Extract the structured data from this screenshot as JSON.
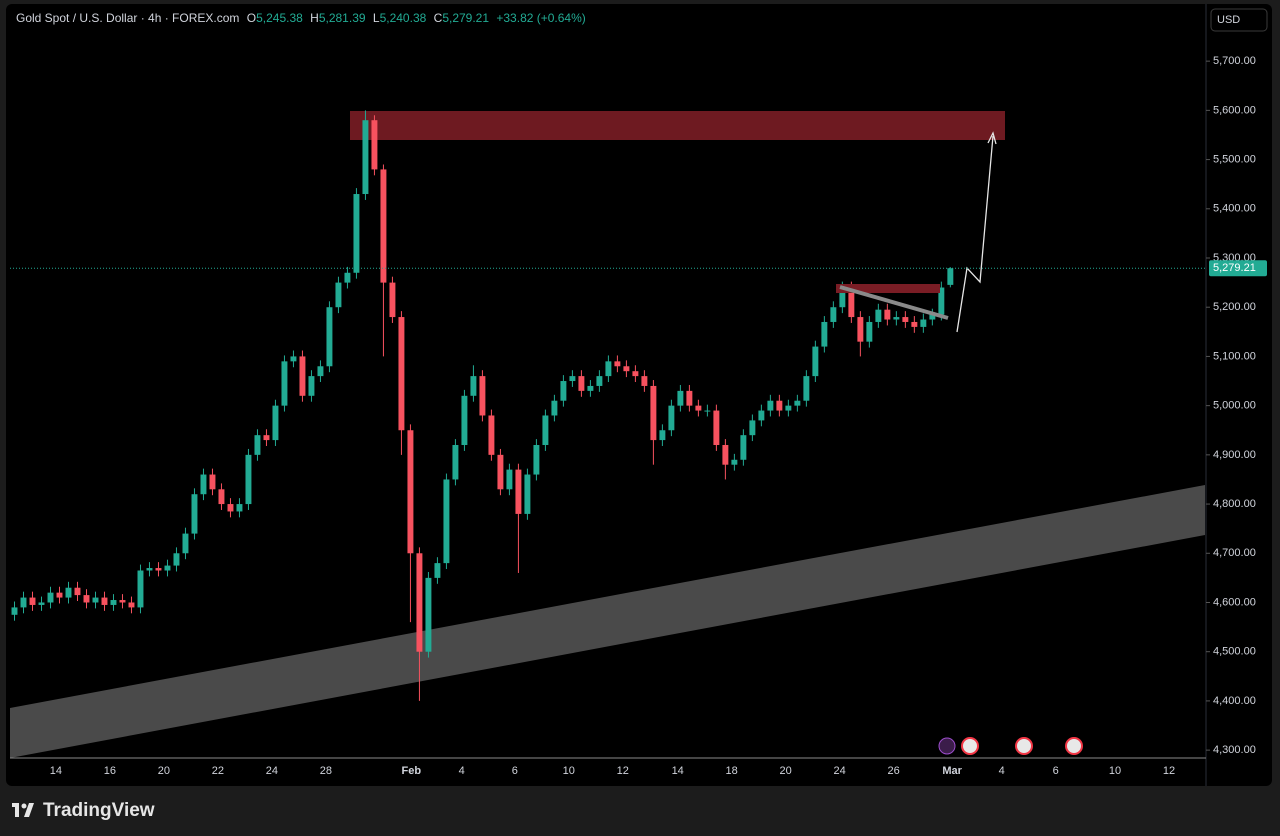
{
  "chart_data": {
    "type": "candlestick",
    "title": "Gold Spot / U.S. Dollar · 4h · FOREX.com",
    "header": {
      "o_label": "O",
      "open": "5,245.38",
      "h_label": "H",
      "high": "5,281.39",
      "l_label": "L",
      "low": "5,240.38",
      "c_label": "C",
      "close": "5,279.21",
      "change": "+33.82 (+0.64%)"
    },
    "currency": "USD",
    "brand": "TradingView",
    "last_price_label": "5,279.21",
    "up_color": "#22ab94",
    "down_color": "#f7525f",
    "open": [
      4575,
      4590,
      4610,
      4595,
      4600,
      4620,
      4610,
      4630,
      4615,
      4600,
      4610,
      4595,
      4605,
      4600,
      4590,
      4665,
      4670,
      4665,
      4675,
      4700,
      4740,
      4820,
      4860,
      4830,
      4800,
      4785,
      4800,
      4900,
      4940,
      4930,
      5000,
      5090,
      5100,
      5020,
      5060,
      5080,
      5200,
      5250,
      5270,
      5430,
      5580,
      5480,
      5250,
      5180,
      4950,
      4700,
      4500,
      4650,
      4680,
      4850,
      4920,
      5020,
      5060,
      4980,
      4900,
      4830,
      4870,
      4780,
      4860,
      4920,
      4980,
      5010,
      5050,
      5060,
      5030,
      5040,
      5060,
      5090,
      5080,
      5070,
      5060,
      5040,
      4930,
      4950,
      5000,
      5030,
      5000,
      4990,
      4990,
      4920,
      4880,
      4890,
      4940,
      4970,
      4990,
      5010,
      4990,
      5000,
      5010,
      5060,
      5120,
      5170,
      5200,
      5240,
      5180,
      5130,
      5170,
      5195,
      5175,
      5180,
      5170,
      5160,
      5175,
      5185,
      5245.38
    ],
    "high": [
      4602,
      4622,
      4622,
      4612,
      4632,
      4632,
      4642,
      4642,
      4627,
      4622,
      4622,
      4617,
      4617,
      4612,
      4677,
      4682,
      4682,
      4687,
      4712,
      4752,
      4832,
      4872,
      4872,
      4842,
      4812,
      4812,
      4912,
      4952,
      4952,
      5012,
      5102,
      5112,
      5112,
      5072,
      5092,
      5212,
      5262,
      5282,
      5442,
      5600,
      5590,
      5490,
      5262,
      5192,
      4962,
      4712,
      4662,
      4692,
      4862,
      4932,
      5032,
      5082,
      5072,
      4992,
      4912,
      4882,
      4882,
      4872,
      4932,
      4992,
      5022,
      5062,
      5072,
      5072,
      5052,
      5072,
      5102,
      5102,
      5092,
      5082,
      5072,
      5052,
      4962,
      5012,
      5042,
      5042,
      5012,
      5002,
      5002,
      4932,
      4902,
      4952,
      4982,
      5002,
      5022,
      5022,
      5012,
      5022,
      5072,
      5132,
      5182,
      5212,
      5252,
      5252,
      5192,
      5182,
      5207,
      5207,
      5192,
      5192,
      5182,
      5187,
      5197,
      5252,
      5281.39
    ],
    "low": [
      4563,
      4578,
      4583,
      4583,
      4588,
      4598,
      4598,
      4603,
      4588,
      4588,
      4583,
      4583,
      4588,
      4578,
      4578,
      4653,
      4653,
      4653,
      4663,
      4688,
      4728,
      4808,
      4818,
      4788,
      4773,
      4773,
      4788,
      4888,
      4918,
      4918,
      4988,
      5078,
      5008,
      5008,
      5048,
      5068,
      5188,
      5238,
      5258,
      5418,
      5468,
      5100,
      5168,
      4900,
      4560,
      4400,
      4488,
      4638,
      4668,
      4838,
      4908,
      5008,
      4968,
      4888,
      4818,
      4818,
      4660,
      4768,
      4848,
      4908,
      4968,
      4998,
      5038,
      5018,
      5018,
      5028,
      5048,
      5068,
      5058,
      5048,
      5028,
      4880,
      4918,
      4938,
      4988,
      4988,
      4978,
      4978,
      4908,
      4850,
      4868,
      4878,
      4928,
      4958,
      4978,
      4978,
      4978,
      4988,
      4998,
      5048,
      5108,
      5158,
      5188,
      5168,
      5100,
      5118,
      5158,
      5163,
      5163,
      5158,
      5148,
      5148,
      5163,
      5173,
      5240.38
    ],
    "close": [
      4590,
      4610,
      4595,
      4600,
      4620,
      4610,
      4630,
      4615,
      4600,
      4610,
      4595,
      4605,
      4600,
      4590,
      4665,
      4670,
      4665,
      4675,
      4700,
      4740,
      4820,
      4860,
      4830,
      4800,
      4785,
      4800,
      4900,
      4940,
      4930,
      5000,
      5090,
      5100,
      5020,
      5060,
      5080,
      5200,
      5250,
      5270,
      5430,
      5580,
      5480,
      5250,
      5180,
      4950,
      4700,
      4500,
      4650,
      4680,
      4850,
      4920,
      5020,
      5060,
      4980,
      4900,
      4830,
      4870,
      4780,
      4860,
      4920,
      4980,
      5010,
      5050,
      5060,
      5030,
      5040,
      5060,
      5090,
      5080,
      5070,
      5060,
      5040,
      4930,
      4950,
      5000,
      5030,
      5000,
      4990,
      4990,
      4920,
      4880,
      4890,
      4940,
      4970,
      4990,
      5010,
      4990,
      5000,
      5010,
      5060,
      5120,
      5170,
      5200,
      5240,
      5180,
      5130,
      5170,
      5195,
      5175,
      5180,
      5170,
      5160,
      5175,
      5185,
      5240,
      5279.21
    ],
    "xlim": [
      -0.5,
      132.3
    ],
    "xticks": [
      {
        "value": 4.6,
        "label": "14"
      },
      {
        "value": 10.6,
        "label": "16"
      },
      {
        "value": 16.6,
        "label": "20"
      },
      {
        "value": 22.6,
        "label": "22"
      },
      {
        "value": 28.6,
        "label": "24"
      },
      {
        "value": 34.6,
        "label": "28"
      },
      {
        "value": 44.1,
        "label": "Feb"
      },
      {
        "value": 49.7,
        "label": "4"
      },
      {
        "value": 55.6,
        "label": "6"
      },
      {
        "value": 61.6,
        "label": "10"
      },
      {
        "value": 67.6,
        "label": "12"
      },
      {
        "value": 73.7,
        "label": "14"
      },
      {
        "value": 79.7,
        "label": "18"
      },
      {
        "value": 85.7,
        "label": "20"
      },
      {
        "value": 91.7,
        "label": "24"
      },
      {
        "value": 97.7,
        "label": "26"
      },
      {
        "value": 104.2,
        "label": "Mar"
      },
      {
        "value": 109.7,
        "label": "4"
      },
      {
        "value": 115.7,
        "label": "6"
      },
      {
        "value": 122.3,
        "label": "10"
      },
      {
        "value": 128.3,
        "label": "12"
      }
    ],
    "ylim": [
      4284,
      5808
    ],
    "yticks": [
      {
        "value": 4300,
        "label": "4,300.00"
      },
      {
        "value": 4400,
        "label": "4,400.00"
      },
      {
        "value": 4500,
        "label": "4,500.00"
      },
      {
        "value": 4600,
        "label": "4,600.00"
      },
      {
        "value": 4700,
        "label": "4,700.00"
      },
      {
        "value": 4800,
        "label": "4,800.00"
      },
      {
        "value": 4900,
        "label": "4,900.00"
      },
      {
        "value": 5000,
        "label": "5,000.00"
      },
      {
        "value": 5100,
        "label": "5,100.00"
      },
      {
        "value": 5200,
        "label": "5,200.00"
      },
      {
        "value": 5300,
        "label": "5,300.00"
      },
      {
        "value": 5400,
        "label": "5,400.00"
      },
      {
        "value": 5500,
        "label": "5,500.00"
      },
      {
        "value": 5600,
        "label": "5,600.00"
      },
      {
        "value": 5700,
        "label": "5,700.00"
      }
    ]
  }
}
